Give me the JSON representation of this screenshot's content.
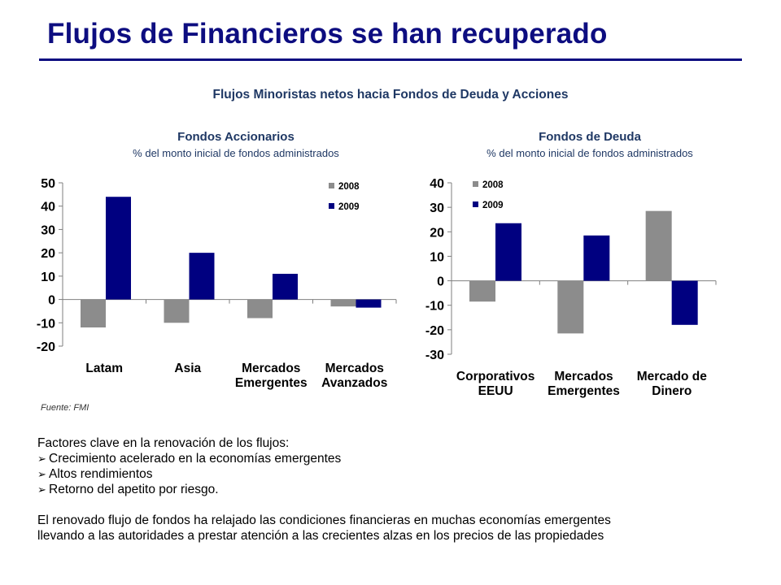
{
  "slide": {
    "title": "Flujos de Financieros se han recuperado",
    "subtitle": "Flujos Minoristas netos hacia Fondos de Deuda y Acciones",
    "source": "Fuente: FMI",
    "accent_color": "#0d0d80"
  },
  "chart_data": [
    {
      "type": "bar",
      "title": "Fondos Accionarios",
      "subtitle": "% del monto inicial de fondos administrados",
      "categories": [
        [
          "Latam"
        ],
        [
          "Asia"
        ],
        [
          "Mercados",
          "Emergentes"
        ],
        [
          "Mercados",
          "Avanzados"
        ]
      ],
      "series": [
        {
          "name": "2008",
          "color": "#8c8c8c",
          "values": [
            -12,
            -10,
            -8,
            -3
          ]
        },
        {
          "name": "2009",
          "color": "#000080",
          "values": [
            44,
            20,
            11,
            -3.5
          ]
        }
      ],
      "ylim": [
        -20,
        50
      ],
      "yticks": [
        -20,
        -10,
        0,
        10,
        20,
        30,
        40,
        50
      ],
      "grid": false,
      "legend": "top-right"
    },
    {
      "type": "bar",
      "title": "Fondos de Deuda",
      "subtitle": "% del monto inicial de fondos administrados",
      "categories": [
        [
          "Corporativos",
          "EEUU"
        ],
        [
          "Mercados",
          "Emergentes"
        ],
        [
          "Mercado de",
          "Dinero"
        ]
      ],
      "series": [
        {
          "name": "2008",
          "color": "#8c8c8c",
          "values": [
            -8.5,
            -21.5,
            28.5
          ]
        },
        {
          "name": "2009",
          "color": "#000080",
          "values": [
            23.5,
            18.5,
            -18
          ]
        }
      ],
      "ylim": [
        -30,
        40
      ],
      "yticks": [
        -30,
        -20,
        -10,
        0,
        10,
        20,
        30,
        40
      ],
      "grid": false,
      "legend": "top-left"
    }
  ],
  "notes": {
    "intro": "Factores clave en la renovación de los flujos:",
    "bullets": [
      "Crecimiento acelerado en la economías emergentes",
      "Altos rendimientos",
      "Retorno del apetito por riesgo."
    ],
    "conclusion": [
      "El renovado flujo de fondos ha relajado las condiciones financieras en muchas economías emergentes",
      "llevando a las autoridades a prestar atención a las crecientes alzas en los precios de las propiedades"
    ]
  }
}
